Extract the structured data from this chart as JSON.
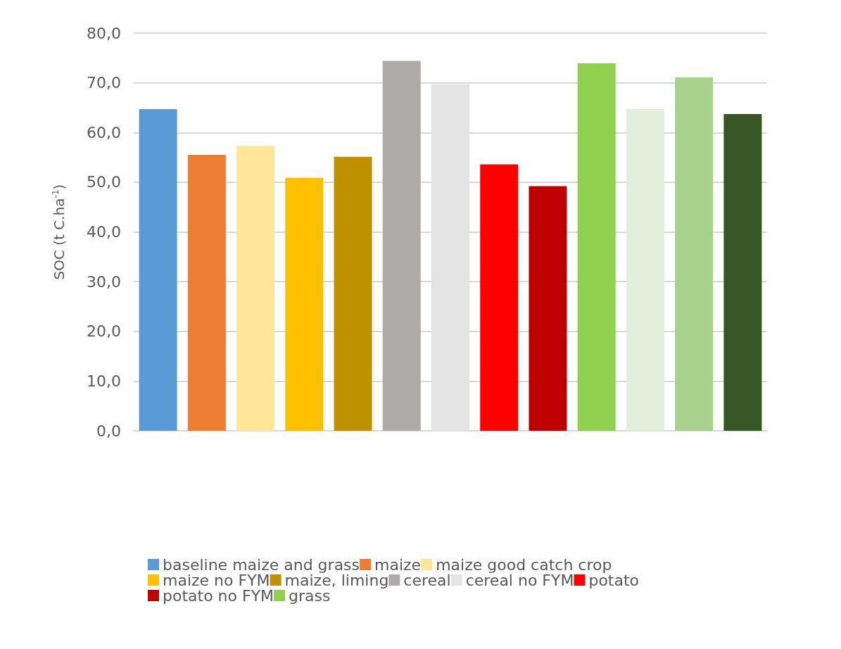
{
  "chart_data": {
    "type": "bar",
    "ylabel": "SOC (t C.ha$^{-1}$)",
    "categories": [
      null,
      null,
      null,
      null,
      null,
      null,
      null,
      null,
      null,
      null,
      null,
      null,
      null
    ],
    "series": [
      {
        "name": "baseline maize and grass",
        "color": "#5b9bd5",
        "values": [
          64.7,
          null,
          null,
          null,
          null,
          null,
          null,
          null,
          null,
          null,
          null,
          null,
          null
        ]
      },
      {
        "name": "maize",
        "color": "#ed7d31",
        "values": [
          null,
          55.5,
          null,
          null,
          null,
          null,
          null,
          null,
          null,
          null,
          null,
          null,
          null
        ]
      },
      {
        "name": "maize good catch crop",
        "color": "#ffe699",
        "values": [
          null,
          null,
          57.3,
          null,
          null,
          null,
          null,
          null,
          null,
          null,
          null,
          null,
          null
        ]
      },
      {
        "name": "maize no FYM",
        "color": "#ffc000",
        "values": [
          null,
          null,
          null,
          50.9,
          null,
          null,
          null,
          null,
          null,
          null,
          null,
          null,
          null
        ]
      },
      {
        "name": "maize, liming",
        "color": "#bf9000",
        "values": [
          null,
          null,
          null,
          null,
          55.1,
          null,
          null,
          null,
          null,
          null,
          null,
          null,
          null
        ]
      },
      {
        "name": "cereal",
        "color": "#aeaaaa",
        "values": [
          null,
          null,
          null,
          null,
          null,
          74.4,
          null,
          null,
          null,
          null,
          null,
          null,
          null
        ]
      },
      {
        "name": "cereal no FYM",
        "color": "#e4e4e4",
        "values": [
          null,
          null,
          null,
          null,
          null,
          null,
          69.7,
          null,
          null,
          null,
          null,
          null,
          null
        ]
      },
      {
        "name": "potato",
        "color": "#ff0000",
        "values": [
          null,
          null,
          null,
          null,
          null,
          null,
          null,
          53.6,
          null,
          null,
          null,
          null,
          null
        ]
      },
      {
        "name": "potato no FYM",
        "color": "#c00000",
        "values": [
          null,
          null,
          null,
          null,
          null,
          null,
          null,
          null,
          49.2,
          null,
          null,
          null,
          null
        ]
      },
      {
        "name": "grass",
        "color": "#92d050",
        "values": [
          null,
          null,
          null,
          null,
          null,
          null,
          null,
          null,
          null,
          73.9,
          null,
          null,
          null
        ]
      },
      {
        "color": "#e2efda",
        "values": [
          null,
          null,
          null,
          null,
          null,
          null,
          null,
          null,
          null,
          null,
          64.7,
          null,
          null
        ]
      },
      {
        "color": "#a9d18e",
        "values": [
          null,
          null,
          null,
          null,
          null,
          null,
          null,
          null,
          null,
          null,
          null,
          71.1,
          null
        ]
      },
      {
        "color": "#375623",
        "values": [
          null,
          null,
          null,
          null,
          null,
          null,
          null,
          null,
          null,
          null,
          null,
          null,
          63.7
        ]
      }
    ],
    "ylim": [
      0,
      80
    ],
    "yticks": [
      {
        "value": 0,
        "label": "0,0"
      },
      {
        "value": 10,
        "label": "10,0"
      },
      {
        "value": 20,
        "label": "20,0"
      },
      {
        "value": 30,
        "label": "30,0"
      },
      {
        "value": 40,
        "label": "40,0"
      },
      {
        "value": 50,
        "label": "50,0"
      },
      {
        "value": 60,
        "label": "60,0"
      },
      {
        "value": 70,
        "label": "70,0"
      },
      {
        "value": 80,
        "label": "80,0"
      }
    ],
    "grid": "y",
    "legend": "bottom"
  }
}
